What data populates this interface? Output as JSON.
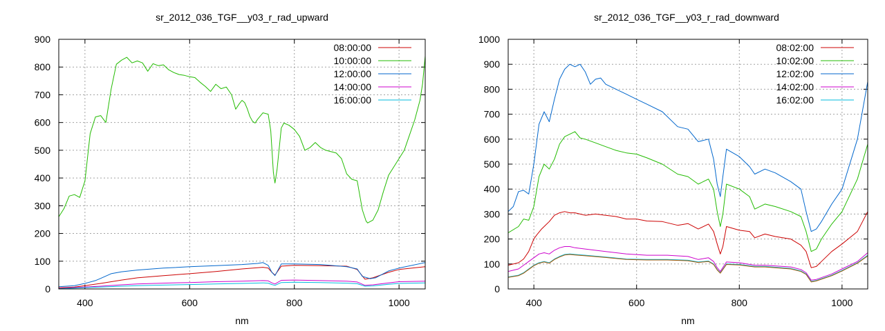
{
  "colors": {
    "red": "#cc0000",
    "green": "#22bb00",
    "blue": "#0066cc",
    "magenta": "#cc00cc",
    "cyan": "#00bbdd",
    "brown": "#aa5500"
  },
  "chart_data": [
    {
      "type": "line",
      "title": "sr_2012_036_TGF__y03_r_rad_upward",
      "xlabel": "nm",
      "ylabel": "",
      "xlim": [
        350,
        1050
      ],
      "ylim": [
        0,
        900
      ],
      "xticks": [
        400,
        600,
        800,
        1000
      ],
      "yticks": [
        0,
        100,
        200,
        300,
        400,
        500,
        600,
        700,
        800,
        900
      ],
      "grid": true,
      "legend_position": "top-right",
      "series": [
        {
          "name": "08:00:00",
          "color_key": "red",
          "x": [
            350,
            380,
            400,
            430,
            470,
            500,
            550,
            600,
            650,
            700,
            740,
            750,
            757,
            763,
            775,
            800,
            850,
            900,
            920,
            935,
            950,
            980,
            1000,
            1050
          ],
          "y": [
            4,
            7,
            12,
            20,
            32,
            40,
            48,
            55,
            63,
            72,
            78,
            75,
            60,
            50,
            82,
            85,
            84,
            82,
            70,
            35,
            40,
            60,
            70,
            80
          ]
        },
        {
          "name": "10:00:00",
          "color_key": "green",
          "x": [
            350,
            360,
            370,
            380,
            390,
            400,
            410,
            420,
            430,
            440,
            450,
            460,
            470,
            480,
            490,
            500,
            510,
            520,
            530,
            540,
            550,
            560,
            570,
            580,
            590,
            600,
            610,
            620,
            630,
            640,
            650,
            660,
            670,
            680,
            688,
            695,
            700,
            705,
            710,
            715,
            720,
            725,
            730,
            740,
            750,
            755,
            760,
            763,
            767,
            775,
            780,
            790,
            800,
            810,
            820,
            830,
            840,
            850,
            860,
            870,
            880,
            890,
            900,
            910,
            920,
            930,
            937,
            940,
            950,
            960,
            970,
            980,
            990,
            1000,
            1010,
            1020,
            1030,
            1040,
            1045,
            1050
          ],
          "y": [
            260,
            290,
            335,
            340,
            330,
            390,
            560,
            620,
            625,
            600,
            720,
            810,
            825,
            835,
            815,
            822,
            815,
            785,
            812,
            805,
            808,
            790,
            780,
            773,
            770,
            765,
            762,
            745,
            730,
            712,
            738,
            722,
            728,
            700,
            648,
            668,
            680,
            672,
            650,
            622,
            605,
            598,
            612,
            635,
            630,
            570,
            420,
            382,
            430,
            580,
            598,
            590,
            575,
            550,
            500,
            510,
            528,
            510,
            500,
            495,
            490,
            470,
            415,
            395,
            390,
            285,
            245,
            238,
            248,
            285,
            350,
            410,
            440,
            470,
            500,
            555,
            610,
            680,
            740,
            840
          ]
        },
        {
          "name": "12:00:00",
          "color_key": "blue",
          "x": [
            350,
            380,
            400,
            420,
            430,
            450,
            470,
            500,
            550,
            600,
            650,
            700,
            730,
            740,
            750,
            757,
            763,
            775,
            800,
            850,
            900,
            920,
            930,
            945,
            955,
            980,
            1000,
            1050
          ],
          "y": [
            8,
            12,
            20,
            30,
            38,
            55,
            62,
            68,
            75,
            80,
            84,
            88,
            92,
            95,
            85,
            60,
            48,
            90,
            90,
            88,
            80,
            72,
            45,
            37,
            40,
            65,
            75,
            95
          ]
        },
        {
          "name": "14:00:00",
          "color_key": "magenta",
          "x": [
            350,
            380,
            400,
            430,
            470,
            500,
            550,
            600,
            650,
            700,
            740,
            750,
            757,
            763,
            775,
            800,
            850,
            900,
            920,
            935,
            950,
            980,
            1000,
            1050
          ],
          "y": [
            2,
            5,
            7,
            10,
            15,
            18,
            21,
            23,
            26,
            28,
            30,
            29,
            22,
            18,
            31,
            32,
            30,
            28,
            25,
            13,
            15,
            22,
            26,
            28
          ]
        },
        {
          "name": "16:00:00",
          "color_key": "cyan",
          "x": [
            350,
            380,
            400,
            430,
            470,
            500,
            550,
            600,
            650,
            700,
            740,
            750,
            757,
            763,
            775,
            800,
            850,
            900,
            920,
            935,
            950,
            980,
            1000,
            1050
          ],
          "y": [
            1,
            3,
            5,
            7,
            10,
            12,
            14,
            16,
            18,
            20,
            22,
            21,
            16,
            13,
            23,
            24,
            23,
            21,
            19,
            10,
            11,
            17,
            20,
            22
          ]
        }
      ]
    },
    {
      "type": "line",
      "title": "sr_2012_036_TGF__y03_r_rad_downward",
      "xlabel": "nm",
      "ylabel": "",
      "xlim": [
        350,
        1050
      ],
      "ylim": [
        0,
        1000
      ],
      "xticks": [
        400,
        600,
        800,
        1000
      ],
      "yticks": [
        0,
        100,
        200,
        300,
        400,
        500,
        600,
        700,
        800,
        900,
        1000
      ],
      "grid": true,
      "legend_position": "top-right",
      "series": [
        {
          "name": "08:02:00",
          "color_key": "red",
          "x": [
            350,
            370,
            380,
            390,
            400,
            405,
            415,
            430,
            440,
            450,
            460,
            470,
            480,
            490,
            500,
            520,
            540,
            560,
            580,
            600,
            620,
            650,
            680,
            700,
            720,
            740,
            750,
            757,
            763,
            768,
            775,
            800,
            820,
            830,
            850,
            870,
            900,
            920,
            930,
            940,
            950,
            960,
            980,
            1000,
            1030,
            1050
          ],
          "y": [
            95,
            105,
            120,
            150,
            200,
            215,
            240,
            270,
            295,
            305,
            310,
            305,
            305,
            300,
            295,
            300,
            295,
            290,
            280,
            280,
            272,
            270,
            255,
            262,
            240,
            260,
            230,
            180,
            140,
            170,
            250,
            235,
            230,
            205,
            220,
            210,
            200,
            175,
            150,
            85,
            90,
            110,
            150,
            180,
            230,
            310
          ]
        },
        {
          "name": "10:02:00",
          "color_key": "green",
          "x": [
            350,
            370,
            380,
            390,
            400,
            410,
            420,
            430,
            440,
            450,
            460,
            470,
            480,
            490,
            500,
            520,
            540,
            560,
            580,
            600,
            620,
            650,
            680,
            700,
            720,
            740,
            750,
            757,
            763,
            768,
            775,
            800,
            820,
            830,
            850,
            870,
            900,
            920,
            930,
            940,
            950,
            960,
            980,
            1000,
            1030,
            1050
          ],
          "y": [
            225,
            250,
            280,
            275,
            330,
            450,
            500,
            480,
            520,
            580,
            610,
            620,
            630,
            605,
            600,
            585,
            570,
            555,
            545,
            540,
            525,
            500,
            460,
            450,
            420,
            440,
            400,
            310,
            250,
            300,
            420,
            400,
            370,
            320,
            340,
            330,
            310,
            290,
            230,
            150,
            160,
            200,
            260,
            310,
            440,
            580
          ]
        },
        {
          "name": "12:02:00",
          "color_key": "blue",
          "x": [
            350,
            360,
            370,
            380,
            390,
            400,
            410,
            420,
            430,
            440,
            450,
            460,
            470,
            480,
            490,
            500,
            510,
            520,
            530,
            540,
            560,
            580,
            600,
            620,
            650,
            680,
            700,
            720,
            740,
            750,
            757,
            763,
            768,
            775,
            800,
            820,
            830,
            850,
            870,
            900,
            920,
            930,
            940,
            950,
            960,
            980,
            1000,
            1030,
            1050
          ],
          "y": [
            310,
            330,
            390,
            395,
            380,
            500,
            660,
            710,
            670,
            760,
            840,
            880,
            900,
            890,
            900,
            870,
            820,
            840,
            845,
            820,
            800,
            780,
            760,
            740,
            710,
            650,
            640,
            590,
            600,
            520,
            420,
            370,
            450,
            560,
            530,
            490,
            460,
            480,
            465,
            430,
            400,
            310,
            230,
            240,
            270,
            340,
            400,
            600,
            830
          ]
        },
        {
          "name": "14:02:00",
          "color_key": "magenta",
          "x": [
            350,
            370,
            380,
            390,
            400,
            410,
            420,
            430,
            440,
            450,
            460,
            470,
            480,
            500,
            540,
            580,
            620,
            660,
            700,
            720,
            740,
            750,
            757,
            763,
            775,
            800,
            830,
            850,
            900,
            920,
            930,
            940,
            950,
            980,
            1000,
            1030,
            1050
          ],
          "y": [
            70,
            80,
            95,
            110,
            125,
            140,
            145,
            140,
            155,
            165,
            170,
            170,
            165,
            160,
            150,
            140,
            135,
            135,
            130,
            118,
            125,
            110,
            85,
            70,
            108,
            105,
            95,
            95,
            88,
            78,
            65,
            35,
            38,
            60,
            80,
            110,
            145
          ]
        },
        {
          "name": "16:02:00",
          "color_key": "cyan",
          "x": [
            350,
            370,
            380,
            390,
            400,
            410,
            420,
            430,
            440,
            450,
            460,
            470,
            480,
            500,
            540,
            580,
            620,
            660,
            700,
            720,
            740,
            750,
            757,
            763,
            775,
            800,
            830,
            850,
            900,
            920,
            930,
            940,
            950,
            980,
            1000,
            1030,
            1050
          ],
          "y": [
            48,
            55,
            65,
            80,
            95,
            105,
            110,
            105,
            120,
            130,
            138,
            140,
            138,
            135,
            128,
            120,
            118,
            118,
            115,
            108,
            112,
            100,
            78,
            65,
            100,
            98,
            90,
            90,
            82,
            72,
            60,
            30,
            34,
            55,
            74,
            105,
            135
          ]
        },
        {
          "name": "",
          "color_key": "brown",
          "x": [
            350,
            370,
            380,
            390,
            400,
            410,
            420,
            430,
            440,
            450,
            460,
            470,
            480,
            500,
            540,
            580,
            620,
            660,
            700,
            720,
            740,
            750,
            757,
            763,
            775,
            800,
            830,
            850,
            900,
            920,
            930,
            940,
            950,
            980,
            1000,
            1030,
            1050
          ],
          "y": [
            46,
            53,
            63,
            78,
            93,
            103,
            108,
            103,
            118,
            128,
            136,
            138,
            136,
            133,
            126,
            118,
            116,
            116,
            113,
            106,
            110,
            98,
            76,
            63,
            98,
            96,
            88,
            88,
            80,
            70,
            58,
            28,
            32,
            53,
            72,
            103,
            132
          ]
        }
      ]
    }
  ]
}
